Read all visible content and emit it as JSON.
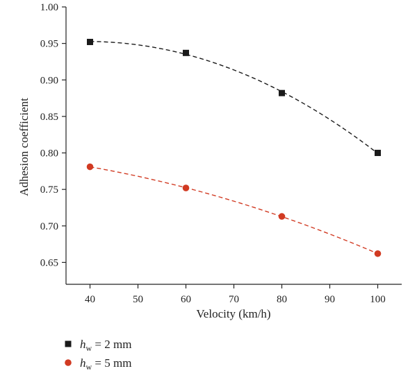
{
  "chart_data": {
    "type": "scatter",
    "xlabel": "Velocity (km/h)",
    "ylabel": "Adhesion coefficient",
    "xlim": [
      35,
      105
    ],
    "ylim": [
      0.62,
      1.0
    ],
    "x_ticks": [
      "40",
      "50",
      "60",
      "70",
      "80",
      "90",
      "100"
    ],
    "y_ticks": [
      "0.65",
      "0.70",
      "0.75",
      "0.80",
      "0.85",
      "0.90",
      "0.95",
      "1.00"
    ],
    "grid": false,
    "legend_position": "bottom-left",
    "series": [
      {
        "legend_main": "h",
        "legend_sub": "w",
        "legend_value": " = 2 mm",
        "marker": "square",
        "color": "#1a1a1a",
        "x": [
          40,
          60,
          80,
          100
        ],
        "y": [
          0.952,
          0.937,
          0.882,
          0.8
        ],
        "fit_line": "dashed"
      },
      {
        "legend_main": "h",
        "legend_sub": "w",
        "legend_value": " = 5 mm",
        "marker": "circle",
        "color": "#d13a22",
        "x": [
          40,
          60,
          80,
          100
        ],
        "y": [
          0.781,
          0.752,
          0.713,
          0.662
        ],
        "fit_line": "dashed"
      }
    ]
  }
}
